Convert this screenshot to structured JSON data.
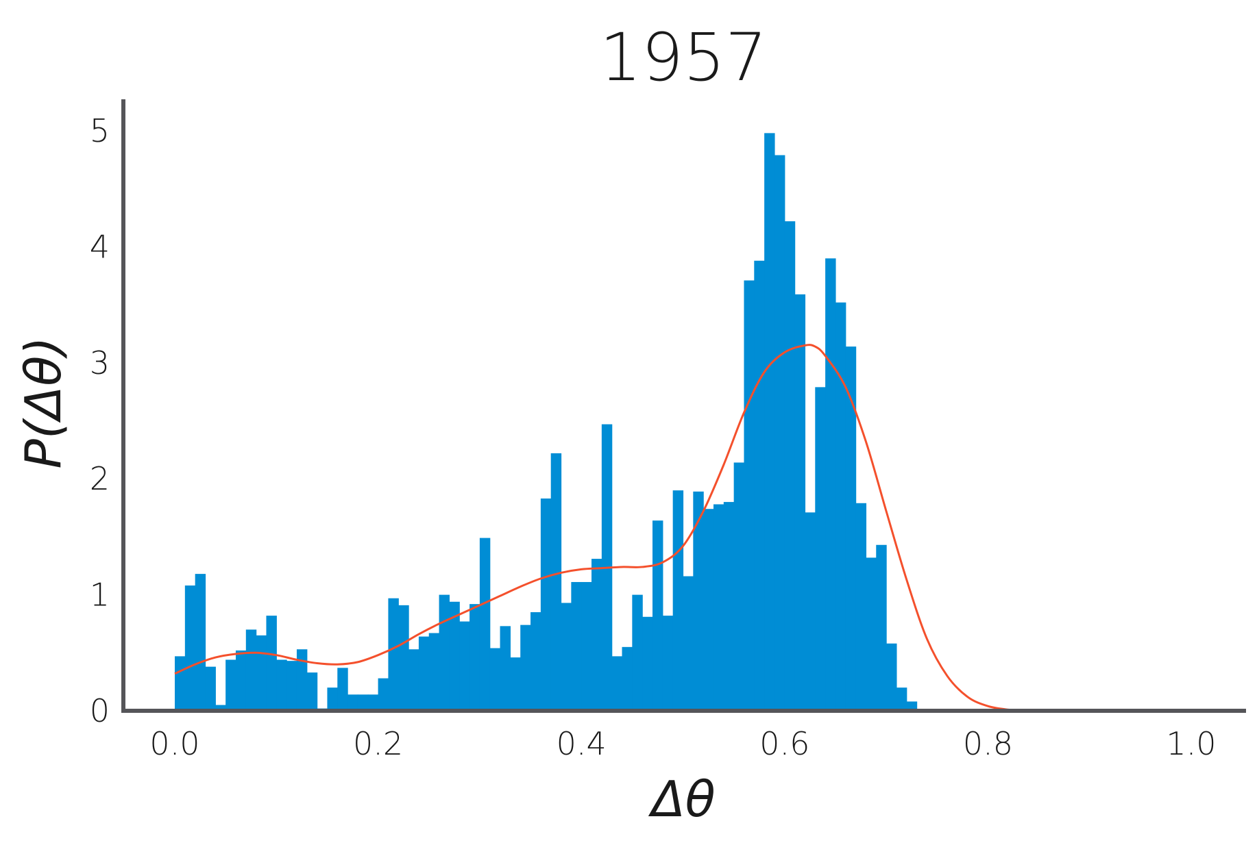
{
  "colors": {
    "bar": "#008dd5",
    "kde": "#f4502c",
    "axis": "#555559",
    "text": "#1a1a1a"
  },
  "chart_data": {
    "type": "bar",
    "title": "1957",
    "xlabel": "Δθ",
    "ylabel": "P(Δθ)",
    "xlim": [
      -0.05,
      1.05
    ],
    "ylim": [
      0,
      5.2
    ],
    "x_ticks": [
      0.0,
      0.2,
      0.4,
      0.6,
      0.8,
      1.0
    ],
    "x_tick_labels": [
      "0.0",
      "0.2",
      "0.4",
      "0.6",
      "0.8",
      "1.0"
    ],
    "y_ticks": [
      0,
      1,
      2,
      3,
      4,
      5
    ],
    "y_tick_labels": [
      "0",
      "1",
      "2",
      "3",
      "4",
      "5"
    ],
    "grid": false,
    "histogram": {
      "bin_start": 0.0,
      "bin_width": 0.01,
      "values": [
        0.47,
        1.08,
        1.18,
        0.38,
        0.05,
        0.44,
        0.52,
        0.7,
        0.65,
        0.82,
        0.44,
        0.43,
        0.53,
        0.33,
        0.02,
        0.2,
        0.37,
        0.14,
        0.14,
        0.14,
        0.28,
        0.97,
        0.91,
        0.53,
        0.64,
        0.67,
        1.0,
        0.94,
        0.77,
        0.92,
        1.49,
        0.54,
        0.73,
        0.46,
        0.74,
        0.85,
        1.83,
        2.22,
        0.93,
        1.11,
        1.11,
        1.31,
        2.47,
        0.47,
        0.55,
        1.0,
        0.81,
        1.64,
        0.82,
        1.9,
        1.16,
        1.89,
        1.74,
        1.78,
        1.8,
        2.14,
        3.71,
        3.88,
        4.98,
        4.79,
        4.22,
        3.59,
        1.71,
        2.79,
        3.9,
        3.52,
        3.14,
        1.79,
        1.32,
        1.43,
        0.58,
        0.2,
        0.08
      ]
    },
    "kde": {
      "x": [
        0.0,
        0.02,
        0.04,
        0.06,
        0.08,
        0.1,
        0.12,
        0.14,
        0.16,
        0.18,
        0.2,
        0.22,
        0.24,
        0.26,
        0.28,
        0.3,
        0.32,
        0.34,
        0.36,
        0.38,
        0.4,
        0.42,
        0.44,
        0.46,
        0.48,
        0.5,
        0.52,
        0.54,
        0.56,
        0.58,
        0.6,
        0.62,
        0.63,
        0.64,
        0.66,
        0.68,
        0.7,
        0.72,
        0.74,
        0.76,
        0.78,
        0.8,
        0.82,
        0.84,
        0.86,
        1.05
      ],
      "y": [
        0.32,
        0.4,
        0.46,
        0.49,
        0.5,
        0.48,
        0.44,
        0.41,
        0.4,
        0.42,
        0.48,
        0.56,
        0.66,
        0.75,
        0.83,
        0.91,
        0.99,
        1.07,
        1.14,
        1.19,
        1.22,
        1.23,
        1.24,
        1.24,
        1.28,
        1.42,
        1.72,
        2.12,
        2.57,
        2.92,
        3.09,
        3.15,
        3.14,
        3.06,
        2.79,
        2.32,
        1.72,
        1.13,
        0.62,
        0.3,
        0.12,
        0.04,
        0.01,
        0.0,
        0.0,
        0.0
      ]
    }
  }
}
